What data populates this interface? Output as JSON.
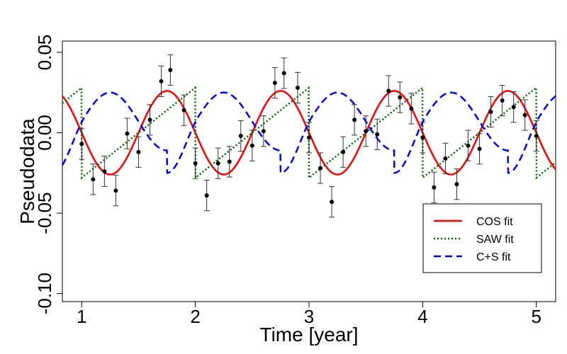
{
  "chart_data": {
    "type": "scatter",
    "title": "",
    "xlabel": "Time [year]",
    "ylabel": "Pseudodata",
    "xlim": [
      0.83,
      5.17
    ],
    "ylim": [
      -0.105,
      0.057
    ],
    "x_ticks": [
      1,
      2,
      3,
      4,
      5
    ],
    "x_tick_labels": [
      "1",
      "2",
      "3",
      "4",
      "5"
    ],
    "y_ticks": [
      -0.1,
      -0.05,
      0.0,
      0.05
    ],
    "y_tick_labels": [
      "-0.10",
      "-0.05",
      "0.00",
      "0.05"
    ],
    "grid": false,
    "legend_position": "bottom-right",
    "colors": {
      "points": "#000000",
      "errorbars": "#333333",
      "cos_fit": "#ff0000",
      "saw_fit": "#006400",
      "cs_fit": "#0000ff"
    },
    "data_points": {
      "name": "Pseudodata",
      "error": 0.0095,
      "x": [
        1.0,
        1.1,
        1.2,
        1.3,
        1.4,
        1.5,
        1.6,
        1.7,
        1.78,
        1.9,
        2.0,
        2.1,
        2.2,
        2.3,
        2.4,
        2.5,
        2.6,
        2.7,
        2.78,
        2.9,
        3.0,
        3.1,
        3.2,
        3.3,
        3.4,
        3.5,
        3.6,
        3.7,
        3.8,
        3.9,
        4.0,
        4.1,
        4.2,
        4.3,
        4.4,
        4.5,
        4.6,
        4.7,
        4.8,
        4.9,
        5.0
      ],
      "y": [
        -0.007,
        -0.029,
        -0.024,
        -0.036,
        -0.0005,
        -0.012,
        0.008,
        0.032,
        0.039,
        0.014,
        -0.019,
        -0.039,
        -0.019,
        -0.018,
        -0.002,
        -0.008,
        0.001,
        0.031,
        0.037,
        0.028,
        -0.003,
        -0.022,
        -0.043,
        -0.012,
        0.008,
        0.001,
        -0.001,
        0.026,
        0.022,
        0.015,
        -0.003,
        -0.034,
        -0.016,
        -0.032,
        -0.008,
        -0.01,
        0.013,
        0.02,
        0.016,
        0.011,
        -0.002
      ]
    },
    "series": [
      {
        "name": "COS fit",
        "model": "cos",
        "amplitude": 0.026,
        "phase": 0.75,
        "style": "solid"
      },
      {
        "name": "SAW fit",
        "model": "saw",
        "amplitude": 0.028,
        "phase": 0.0,
        "style": "dotted"
      },
      {
        "name": "C+S fit",
        "model": "cos+saw",
        "amplitude": 0.025,
        "phase": 0.75,
        "style": "dashed"
      }
    ],
    "legend": [
      "COS fit",
      "SAW fit",
      "C+S fit"
    ]
  }
}
